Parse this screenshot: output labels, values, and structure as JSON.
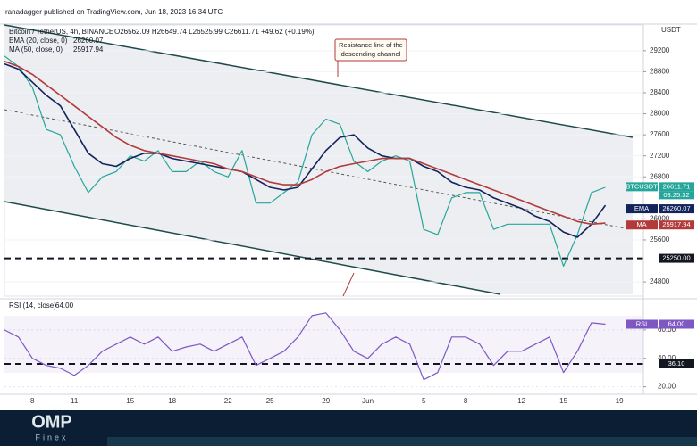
{
  "header": {
    "attribution": "ranadagger published on TradingView.com, Jun 18, 2023 16:34 UTC"
  },
  "branding": {
    "logo": "OMP",
    "tagline": "Finex"
  },
  "chart_data": [
    {
      "type": "line",
      "currency": "USDT",
      "symbol": "BTCUSDT",
      "ohlc": "O26562.09 H26649.74 L26525.99 C26611.71 +49.62 (+0.19%)",
      "countdown": "03:25:32",
      "annotation": [
        "Resistance line of the",
        "descending channel"
      ],
      "categories": [
        null,
        null,
        "8",
        null,
        null,
        "11",
        null,
        null,
        null,
        "15",
        null,
        null,
        "18",
        null,
        null,
        null,
        "22",
        null,
        null,
        "25",
        null,
        null,
        null,
        "29",
        null,
        null,
        "Jun",
        null,
        null,
        null,
        "5",
        null,
        null,
        "8",
        null,
        null,
        null,
        "12",
        null,
        null,
        "15",
        null,
        null,
        null,
        "19"
      ],
      "ylim": [
        24530,
        29690
      ],
      "yticks": [
        24800,
        25600,
        26000,
        26800,
        27200,
        27600,
        28000,
        28400,
        28800,
        29200
      ],
      "grid": true,
      "levels": [
        {
          "value": 25250,
          "label": "25250.00"
        }
      ],
      "series": [
        {
          "name": "Bitcoin / TetherUS, 4h, BINANCE",
          "color": "#26a69a",
          "last_value": 26611.71,
          "values": [
            29100,
            28900,
            28500,
            27700,
            27600,
            27000,
            26500,
            26800,
            26900,
            27200,
            27100,
            27300,
            26900,
            26900,
            27100,
            26900,
            26800,
            27300,
            26300,
            26300,
            26500,
            26700,
            27600,
            27900,
            27800,
            27100,
            26900,
            27100,
            27200,
            27100,
            25800,
            25700,
            26400,
            26500,
            26500,
            25800,
            25900,
            25900,
            25900,
            25900,
            25100,
            25700,
            26500,
            26600,
            null
          ]
        },
        {
          "name": "EMA (20, close, 0)",
          "tag": "EMA",
          "color": "#13235b",
          "last_value": 26260.07,
          "values": [
            28950,
            28850,
            28600,
            28350,
            28150,
            27700,
            27250,
            27050,
            27000,
            27150,
            27250,
            27250,
            27150,
            27100,
            27050,
            27000,
            26950,
            26900,
            26750,
            26600,
            26550,
            26600,
            26950,
            27300,
            27550,
            27600,
            27350,
            27200,
            27150,
            27150,
            27000,
            26900,
            26700,
            26600,
            26550,
            26400,
            26300,
            26200,
            26050,
            25950,
            25750,
            25650,
            25900,
            26260,
            null
          ]
        },
        {
          "name": "MA (50, close, 0)",
          "tag": "MA",
          "color": "#b33a3a",
          "last_value": 25917.94,
          "values": [
            29000,
            28900,
            28750,
            28550,
            28350,
            28150,
            27950,
            27750,
            27550,
            27400,
            27300,
            27250,
            27200,
            27150,
            27100,
            27050,
            26950,
            26900,
            26800,
            26700,
            26650,
            26650,
            26750,
            26900,
            27000,
            27050,
            27100,
            27150,
            27150,
            27150,
            27050,
            26950,
            26850,
            26750,
            26650,
            26550,
            26450,
            26350,
            26250,
            26150,
            26050,
            25950,
            25900,
            25920,
            null
          ]
        }
      ]
    },
    {
      "type": "line",
      "name": "RSI (14, close)",
      "tag": "RSI",
      "color": "#7e57c2",
      "last_value": {
        "value": 64,
        "label": "64.00"
      },
      "ylim": [
        16,
        80
      ],
      "yticks": [
        {
          "value": 20,
          "label": "20.00"
        },
        {
          "value": 40,
          "label": "40.00"
        },
        {
          "value": 60,
          "label": "60.00"
        }
      ],
      "levels": [
        {
          "value": 36.1,
          "label": "36.10"
        }
      ],
      "values": [
        60,
        55,
        40,
        35,
        33,
        28,
        35,
        45,
        50,
        55,
        50,
        55,
        45,
        48,
        50,
        45,
        50,
        55,
        35,
        40,
        45,
        55,
        70,
        72,
        60,
        45,
        40,
        50,
        55,
        50,
        25,
        30,
        55,
        55,
        50,
        35,
        45,
        45,
        50,
        55,
        30,
        45,
        65,
        64,
        null
      ]
    }
  ]
}
